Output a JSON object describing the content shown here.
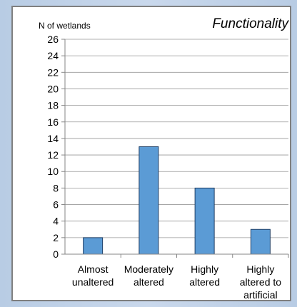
{
  "chart_data": {
    "type": "bar",
    "title": "Functionality",
    "ylabel": "N of wetlands",
    "xlabel": "",
    "categories": [
      [
        "Almost",
        "unaltered"
      ],
      [
        "Moderately",
        "altered"
      ],
      [
        "Highly",
        "altered"
      ],
      [
        "Highly",
        "altered to",
        "artificial"
      ]
    ],
    "values": [
      2,
      13,
      8,
      3
    ],
    "ylim": [
      0,
      26
    ],
    "yticks": [
      "0",
      "2",
      "4",
      "6",
      "8",
      "10",
      "12",
      "14",
      "16",
      "18",
      "20",
      "22",
      "24",
      "26"
    ],
    "grid": true,
    "bar_color": "#5b9bd5",
    "bar_edge_color": "#1f3f66",
    "grid_color": "#999999"
  }
}
